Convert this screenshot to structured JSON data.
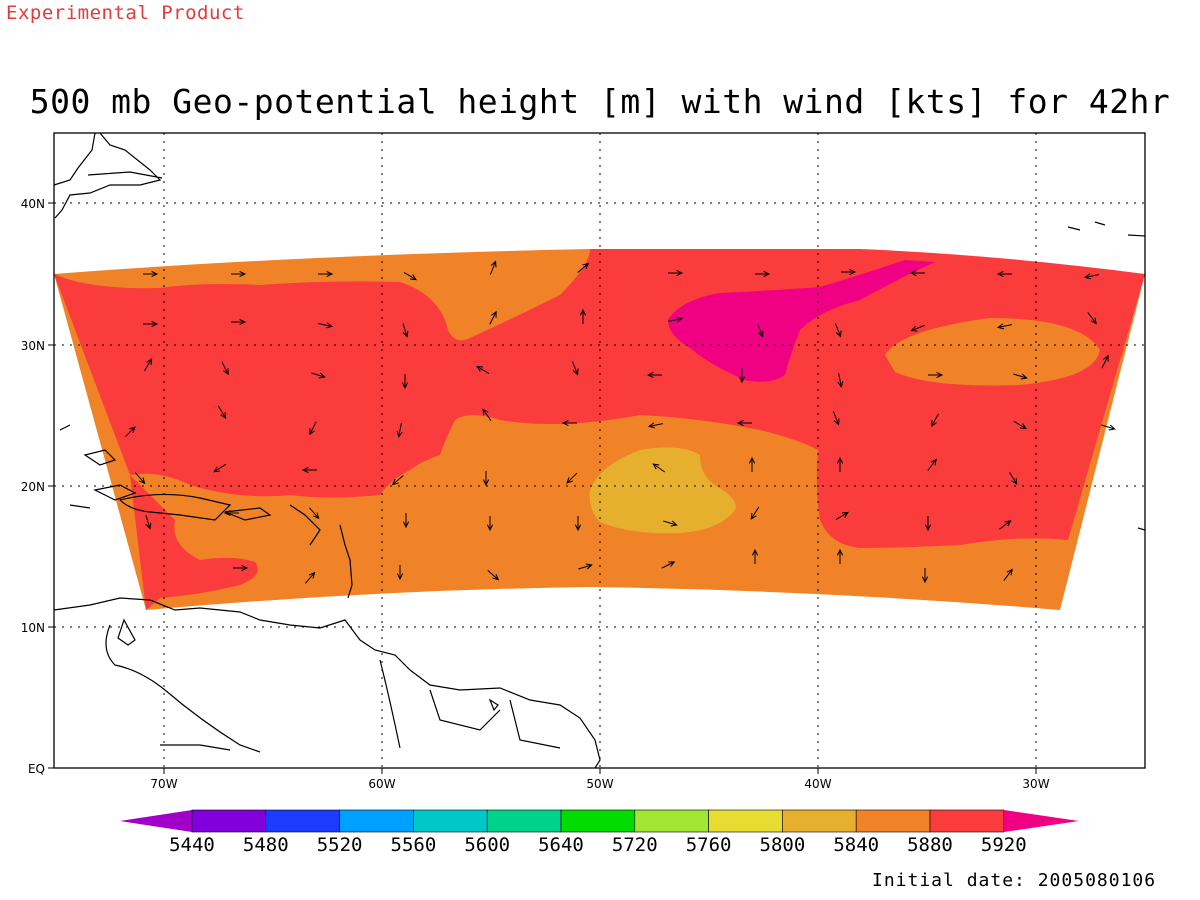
{
  "header": {
    "product_label": "Experimental Product",
    "title": "500 mb Geo-potential height [m] with wind [kts] for 42hr"
  },
  "footer": {
    "initial_date": "Initial date: 2005080106"
  },
  "map": {
    "x_ticks": [
      "70W",
      "60W",
      "50W",
      "40W",
      "30W"
    ],
    "y_ticks": [
      "40N",
      "30N",
      "20N",
      "10N",
      "EQ"
    ],
    "grid": true
  },
  "colorbar": {
    "labels": [
      "5440",
      "5480",
      "5520",
      "5560",
      "5600",
      "5640",
      "5720",
      "5760",
      "5800",
      "5840",
      "5880",
      "5920"
    ],
    "colors": [
      "#a000c8",
      "#8200dc",
      "#1e3cff",
      "#00a0ff",
      "#00c8c8",
      "#00d28c",
      "#00dc00",
      "#a0e632",
      "#e6dc32",
      "#e6af2d",
      "#f08228",
      "#fa3c3c",
      "#f00082"
    ]
  }
}
